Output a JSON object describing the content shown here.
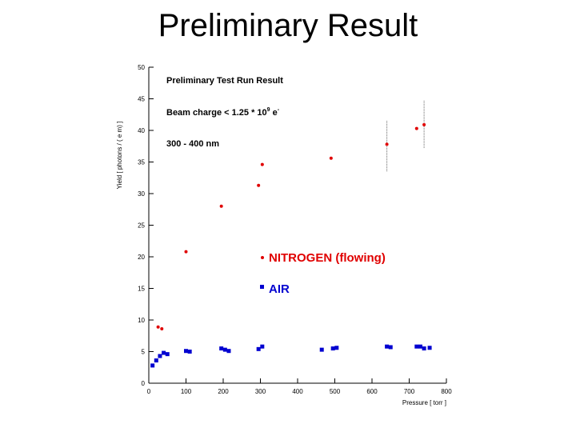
{
  "slide": {
    "title": "Preliminary Result"
  },
  "chart_data": {
    "type": "scatter",
    "ylabel": "Yield [ photons / ( e m) ]",
    "xlabel": "Pressure [ torr ]",
    "xlim": [
      0,
      800
    ],
    "ylim": [
      0,
      50
    ],
    "xticks": [
      0,
      100,
      200,
      300,
      400,
      500,
      600,
      700,
      800
    ],
    "yticks": [
      0,
      5,
      10,
      15,
      20,
      25,
      30,
      35,
      40,
      45,
      50
    ],
    "grid": false,
    "annotations": {
      "run_title": "Preliminary Test Run Result",
      "beam_prefix": "Beam charge < 1.25 * 10",
      "beam_exp": "9",
      "beam_suffix": " e",
      "beam_sup": "-",
      "wavelength": "300 - 400 nm"
    },
    "legend": {
      "placement": "center-right"
    },
    "series": [
      {
        "name": "NITROGEN (flowing)",
        "color": "#e00000",
        "marker": "circle",
        "points": [
          [
            25,
            8.9
          ],
          [
            35,
            8.6
          ],
          [
            100,
            20.8
          ],
          [
            195,
            28.0
          ],
          [
            295,
            31.3
          ],
          [
            305,
            34.6
          ],
          [
            490,
            35.6
          ],
          [
            640,
            37.8
          ],
          [
            720,
            40.3
          ],
          [
            740,
            40.9
          ]
        ]
      },
      {
        "name": "AIR",
        "color": "#0000d0",
        "marker": "square",
        "points": [
          [
            10,
            2.8
          ],
          [
            20,
            3.6
          ],
          [
            30,
            4.3
          ],
          [
            40,
            4.8
          ],
          [
            50,
            4.6
          ],
          [
            100,
            5.1
          ],
          [
            110,
            5.0
          ],
          [
            195,
            5.5
          ],
          [
            205,
            5.3
          ],
          [
            215,
            5.1
          ],
          [
            295,
            5.4
          ],
          [
            305,
            5.8
          ],
          [
            465,
            5.3
          ],
          [
            495,
            5.5
          ],
          [
            505,
            5.6
          ],
          [
            640,
            5.8
          ],
          [
            650,
            5.7
          ],
          [
            720,
            5.8
          ],
          [
            730,
            5.8
          ],
          [
            740,
            5.5
          ],
          [
            755,
            5.6
          ]
        ]
      }
    ],
    "error_bars": [
      {
        "x": 640,
        "low": 33.5,
        "high": 41.5
      },
      {
        "x": 740,
        "low": 37.2,
        "high": 44.7
      }
    ]
  }
}
